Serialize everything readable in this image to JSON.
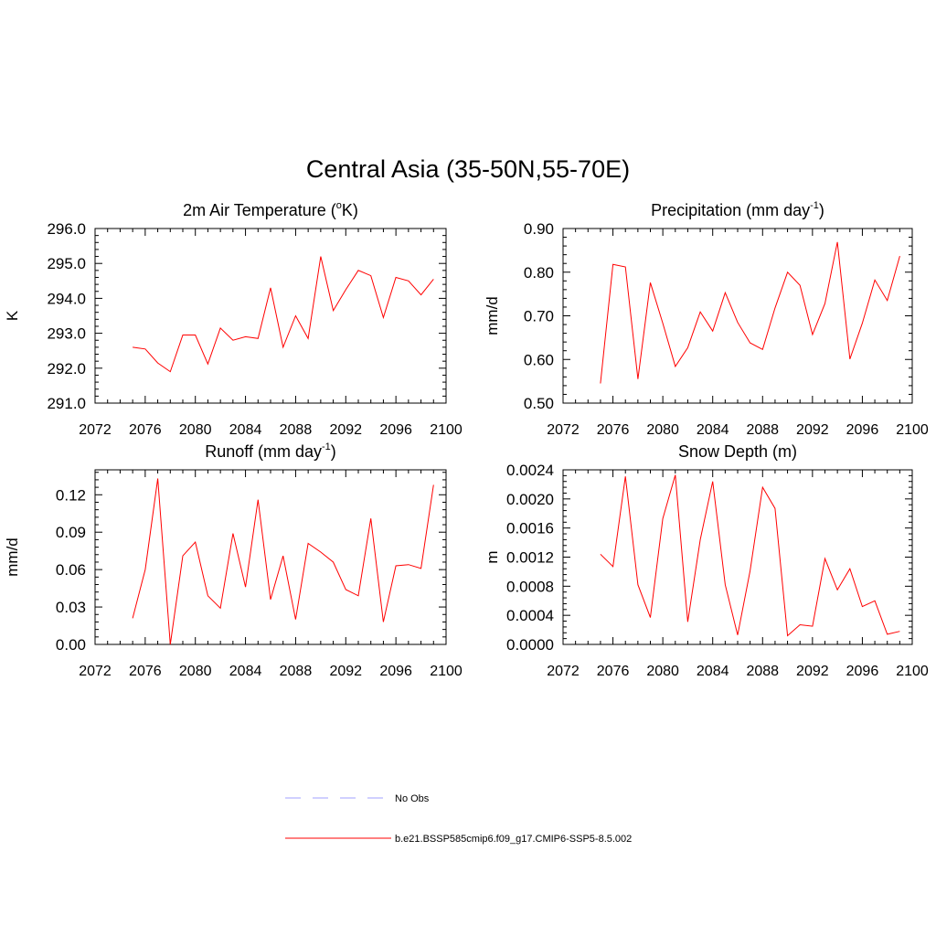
{
  "figure": {
    "title": "Central Asia (35-50N,55-70E)"
  },
  "chart_data": [
    {
      "type": "line",
      "title": "2m Air Temperature",
      "title_suffix": "(",
      "title_sup": "o",
      "title_tail": "K)",
      "ylabel": "K",
      "xlim": [
        2072,
        2100
      ],
      "xticks": [
        2072,
        2076,
        2080,
        2084,
        2088,
        2092,
        2096,
        2100
      ],
      "ylim": [
        291.0,
        296.0
      ],
      "yticks": [
        "291.0",
        "292.0",
        "293.0",
        "294.0",
        "295.0",
        "296.0"
      ],
      "series": [
        {
          "color": "#ff0000",
          "x": [
            2075,
            2076,
            2077,
            2078,
            2079,
            2080,
            2081,
            2082,
            2083,
            2084,
            2085,
            2086,
            2087,
            2088,
            2089,
            2090,
            2091,
            2092,
            2093,
            2094,
            2095,
            2096,
            2097,
            2098,
            2099
          ],
          "values": [
            292.6,
            292.55,
            292.15,
            291.9,
            292.95,
            292.95,
            292.12,
            293.15,
            292.8,
            292.9,
            292.85,
            294.3,
            292.6,
            293.5,
            292.85,
            295.2,
            293.65,
            294.25,
            294.8,
            294.65,
            293.45,
            294.6,
            294.5,
            294.1,
            294.55
          ]
        }
      ]
    },
    {
      "type": "line",
      "title": "Precipitation",
      "title_suffix": "(mm day",
      "title_sup": "-1",
      "title_tail": ")",
      "ylabel": "mm/d",
      "xlim": [
        2072,
        2100
      ],
      "xticks": [
        2072,
        2076,
        2080,
        2084,
        2088,
        2092,
        2096,
        2100
      ],
      "ylim": [
        0.5,
        0.9
      ],
      "yticks": [
        "0.50",
        "0.60",
        "0.70",
        "0.80",
        "0.90"
      ],
      "series": [
        {
          "color": "#ff0000",
          "x": [
            2075,
            2076,
            2077,
            2078,
            2079,
            2080,
            2081,
            2082,
            2083,
            2084,
            2085,
            2086,
            2087,
            2088,
            2089,
            2090,
            2091,
            2092,
            2093,
            2094,
            2095,
            2096,
            2097,
            2098,
            2099
          ],
          "values": [
            0.545,
            0.818,
            0.812,
            0.555,
            0.776,
            0.683,
            0.584,
            0.627,
            0.709,
            0.665,
            0.753,
            0.685,
            0.638,
            0.623,
            0.718,
            0.8,
            0.77,
            0.657,
            0.728,
            0.869,
            0.601,
            0.683,
            0.782,
            0.735,
            0.837
          ]
        }
      ]
    },
    {
      "type": "line",
      "title": "Runoff",
      "title_suffix": "(mm day",
      "title_sup": "-1",
      "title_tail": ")",
      "ylabel": "mm/d",
      "xlim": [
        2072,
        2100
      ],
      "xticks": [
        2072,
        2076,
        2080,
        2084,
        2088,
        2092,
        2096,
        2100
      ],
      "ylim": [
        0.0,
        0.14
      ],
      "yticks": [
        "0.00",
        "0.03",
        "0.06",
        "0.09",
        "0.12"
      ],
      "ytick_values": [
        0.0,
        0.03,
        0.06,
        0.09,
        0.12
      ],
      "series": [
        {
          "color": "#ff0000",
          "x": [
            2075,
            2076,
            2077,
            2078,
            2079,
            2080,
            2081,
            2082,
            2083,
            2084,
            2085,
            2086,
            2087,
            2088,
            2089,
            2090,
            2091,
            2092,
            2093,
            2094,
            2095,
            2096,
            2097,
            2098,
            2099
          ],
          "values": [
            0.021,
            0.06,
            0.133,
            0.0,
            0.071,
            0.082,
            0.039,
            0.029,
            0.089,
            0.046,
            0.116,
            0.036,
            0.071,
            0.02,
            0.081,
            0.074,
            0.066,
            0.044,
            0.039,
            0.101,
            0.018,
            0.063,
            0.064,
            0.061,
            0.128
          ]
        }
      ]
    },
    {
      "type": "line",
      "title": "Snow Depth",
      "title_suffix": "(m)",
      "title_sup": "",
      "title_tail": "",
      "ylabel": "m",
      "xlim": [
        2072,
        2100
      ],
      "xticks": [
        2072,
        2076,
        2080,
        2084,
        2088,
        2092,
        2096,
        2100
      ],
      "ylim": [
        0.0,
        0.0024
      ],
      "yticks": [
        "0.0000",
        "0.0004",
        "0.0008",
        "0.0012",
        "0.0016",
        "0.0020",
        "0.0024"
      ],
      "ytick_values": [
        0.0,
        0.0004,
        0.0008,
        0.0012,
        0.0016,
        0.002,
        0.0024
      ],
      "series": [
        {
          "color": "#ff0000",
          "x": [
            2075,
            2076,
            2077,
            2078,
            2079,
            2080,
            2081,
            2082,
            2083,
            2084,
            2085,
            2086,
            2087,
            2088,
            2089,
            2090,
            2091,
            2092,
            2093,
            2094,
            2095,
            2096,
            2097,
            2098,
            2099
          ],
          "values": [
            0.00124,
            0.00107,
            0.00231,
            0.00082,
            0.00037,
            0.00173,
            0.00233,
            0.00031,
            0.00144,
            0.00224,
            0.00082,
            0.00013,
            0.00101,
            0.00216,
            0.00187,
            0.00012,
            0.00027,
            0.00025,
            0.00118,
            0.00075,
            0.00104,
            0.00052,
            0.0006,
            0.00014,
            0.00018
          ]
        }
      ]
    }
  ],
  "legend": {
    "items": [
      {
        "label": "No Obs",
        "style": "dashed",
        "color": "#a0a0ff"
      },
      {
        "label": "b.e21.BSSP585cmip6.f09_g17.CMIP6-SSP5-8.5.002",
        "style": "solid",
        "color": "#ff0000"
      }
    ]
  }
}
